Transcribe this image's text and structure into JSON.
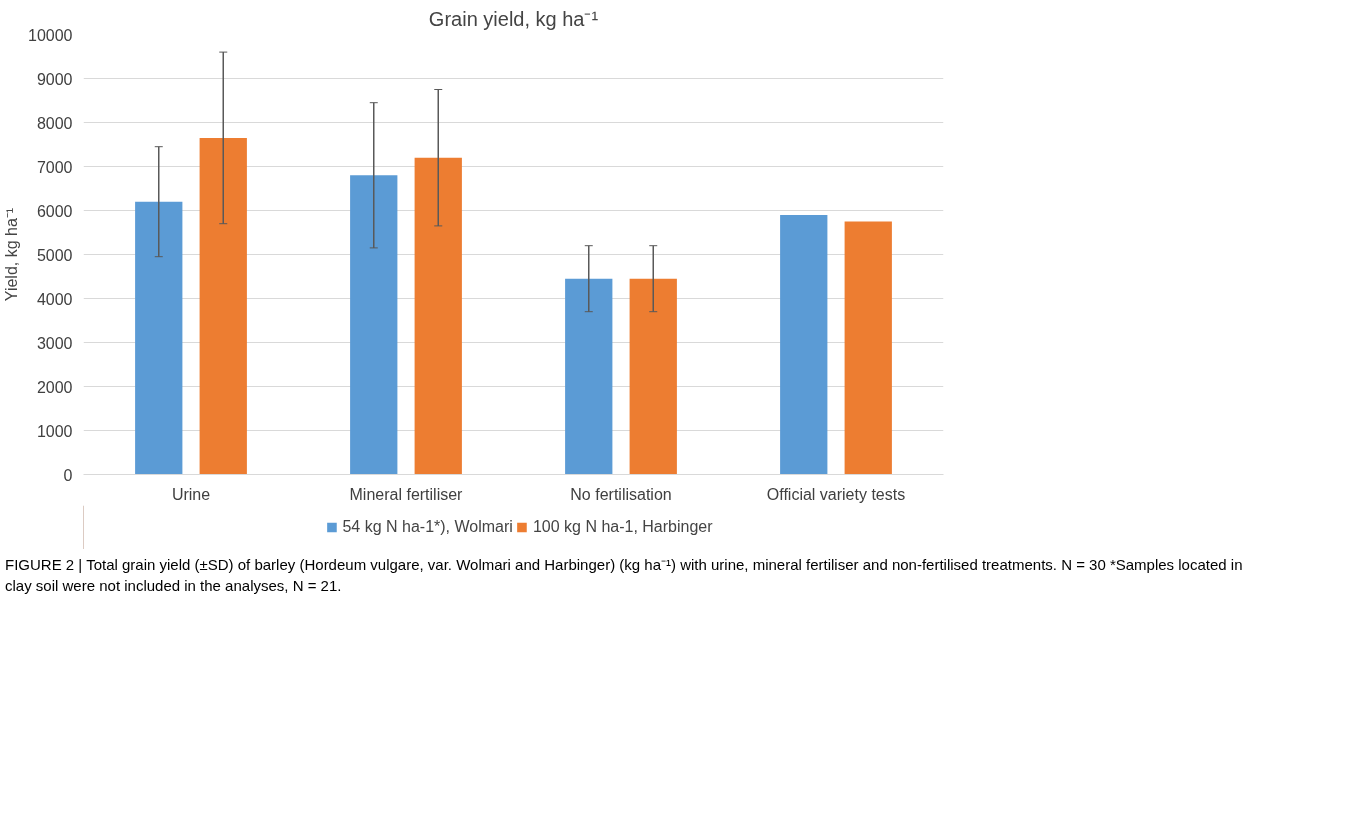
{
  "chart_data": {
    "type": "bar",
    "title": "Grain yield, kg ha⁻¹",
    "ylabel": "Yield, kg ha⁻¹",
    "categories": [
      "Urine",
      "Mineral fertiliser",
      "No fertilisation",
      "Official variety tests"
    ],
    "series": [
      {
        "name": "54 kg N ha-1*), Wolmari",
        "color": "#5b9bd5",
        "values": [
          6200,
          6800,
          4450,
          5900
        ],
        "errors": [
          1250,
          1650,
          750,
          null
        ]
      },
      {
        "name": "100 kg N ha-1, Harbinger",
        "color": "#ed7d31",
        "values": [
          7650,
          7200,
          4450,
          5750
        ],
        "errors": [
          1950,
          1550,
          750,
          null
        ]
      }
    ],
    "ylim": [
      0,
      10000
    ],
    "yticks": [
      0,
      1000,
      2000,
      3000,
      4000,
      5000,
      6000,
      7000,
      8000,
      9000,
      10000
    ],
    "grid": "y",
    "legend": "bottom",
    "annotations": [
      "FIGURE 2 | Total grain yield (±SD) of barley (Hordeum vulgare, var. Wolmari and Harbinger) (kg ha⁻¹) with urine, mineral fertiliser and non-fertilised treatments. N = 30 *Samples located in clay soil were not included in the analyses, N = 21."
    ]
  }
}
